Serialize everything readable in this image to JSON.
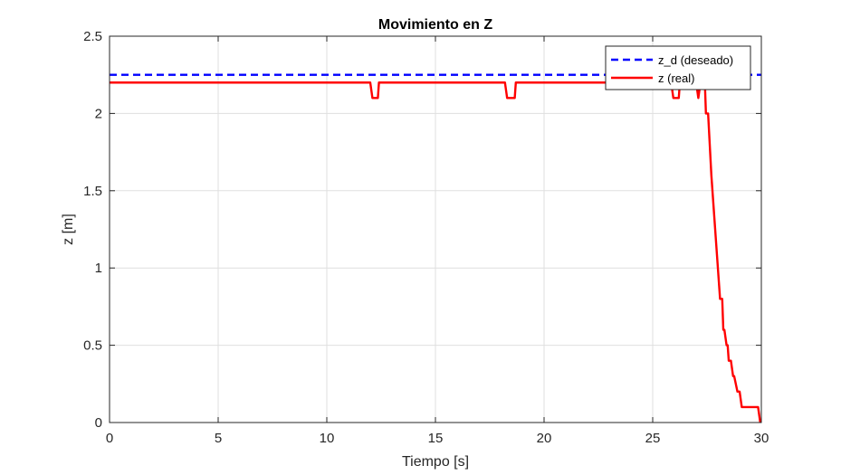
{
  "chart_data": {
    "type": "line",
    "title": "Movimiento en Z",
    "xlabel": "Tiempo [s]",
    "ylabel": "z [m]",
    "xlim": [
      0,
      30
    ],
    "ylim": [
      0,
      2.5
    ],
    "xticks": [
      0,
      5,
      10,
      15,
      20,
      25,
      30
    ],
    "yticks": [
      0,
      0.5,
      1,
      1.5,
      2,
      2.5
    ],
    "xtick_labels": [
      "0",
      "5",
      "10",
      "15",
      "20",
      "25",
      "30"
    ],
    "ytick_labels": [
      "0",
      "0.5",
      "1",
      "1.5",
      "2",
      "2.5"
    ],
    "grid": true,
    "legend_position": "top-right",
    "series": [
      {
        "name": "z_d (deseado)",
        "color": "#0000ff",
        "style": "dashed",
        "x": [
          0,
          30
        ],
        "y": [
          2.25,
          2.25
        ]
      },
      {
        "name": "z (real)",
        "color": "#ff0000",
        "style": "solid",
        "x": [
          0,
          12.0,
          12.1,
          12.35,
          12.4,
          18.2,
          18.3,
          18.65,
          18.7,
          25.85,
          25.95,
          26.2,
          26.25,
          27.0,
          27.1,
          27.2,
          27.4,
          27.45,
          27.55,
          27.7,
          27.8,
          27.9,
          28.0,
          28.1,
          28.2,
          28.25,
          28.3,
          28.4,
          28.45,
          28.5,
          28.6,
          28.7,
          28.75,
          28.9,
          29.0,
          29.1,
          29.85,
          29.9,
          29.95
        ],
        "y": [
          2.2,
          2.2,
          2.1,
          2.1,
          2.2,
          2.2,
          2.1,
          2.1,
          2.2,
          2.2,
          2.1,
          2.1,
          2.2,
          2.2,
          2.1,
          2.2,
          2.2,
          2.0,
          2.0,
          1.6,
          1.4,
          1.2,
          1.0,
          0.8,
          0.8,
          0.6,
          0.6,
          0.5,
          0.5,
          0.4,
          0.4,
          0.3,
          0.3,
          0.2,
          0.2,
          0.1,
          0.1,
          0.05,
          0
        ]
      }
    ]
  }
}
